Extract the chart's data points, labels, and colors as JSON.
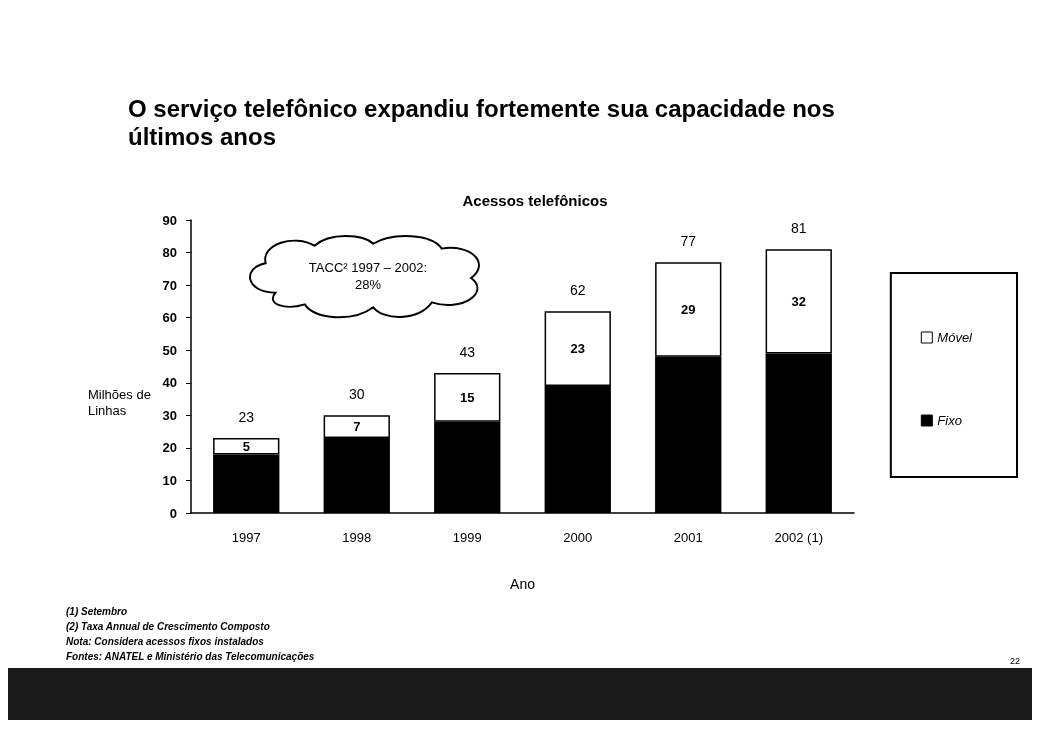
{
  "chart_data": {
    "type": "bar",
    "title": "O serviço telefônico expandiu fortemente sua capacidade nos últimos anos",
    "subtitle": "Acessos telefônicos",
    "xlabel": "Ano",
    "ylabel": "Milhões de Linhas",
    "categories": [
      "1997",
      "1998",
      "1999",
      "2000",
      "2001",
      "2002 (1)"
    ],
    "series": [
      {
        "name": "Fixo",
        "color": "#000000",
        "values": [
          18,
          23,
          28,
          39,
          48,
          49
        ]
      },
      {
        "name": "Móvel",
        "color": "#ffffff",
        "values": [
          5,
          7,
          15,
          23,
          29,
          32
        ],
        "value_labels": [
          "5",
          "7",
          "15",
          "23",
          "29",
          "32"
        ]
      }
    ],
    "stacked": true,
    "totals": [
      "23",
      "30",
      "43",
      "62",
      "77",
      "81"
    ],
    "ylim": [
      0,
      90
    ],
    "yticks": [
      0,
      10,
      20,
      30,
      40,
      50,
      60,
      70,
      80,
      90
    ],
    "grid": false,
    "legend": "right",
    "annotations": [
      "TACC² 1997 – 2002: 28%",
      "(1) Setembro",
      "(2) Taxa Annual de Crescimento Composto",
      "Nota: Considera acessos fixos instalados",
      "Fontes: ANATEL e Ministério das Telecomunicações",
      "22"
    ]
  }
}
